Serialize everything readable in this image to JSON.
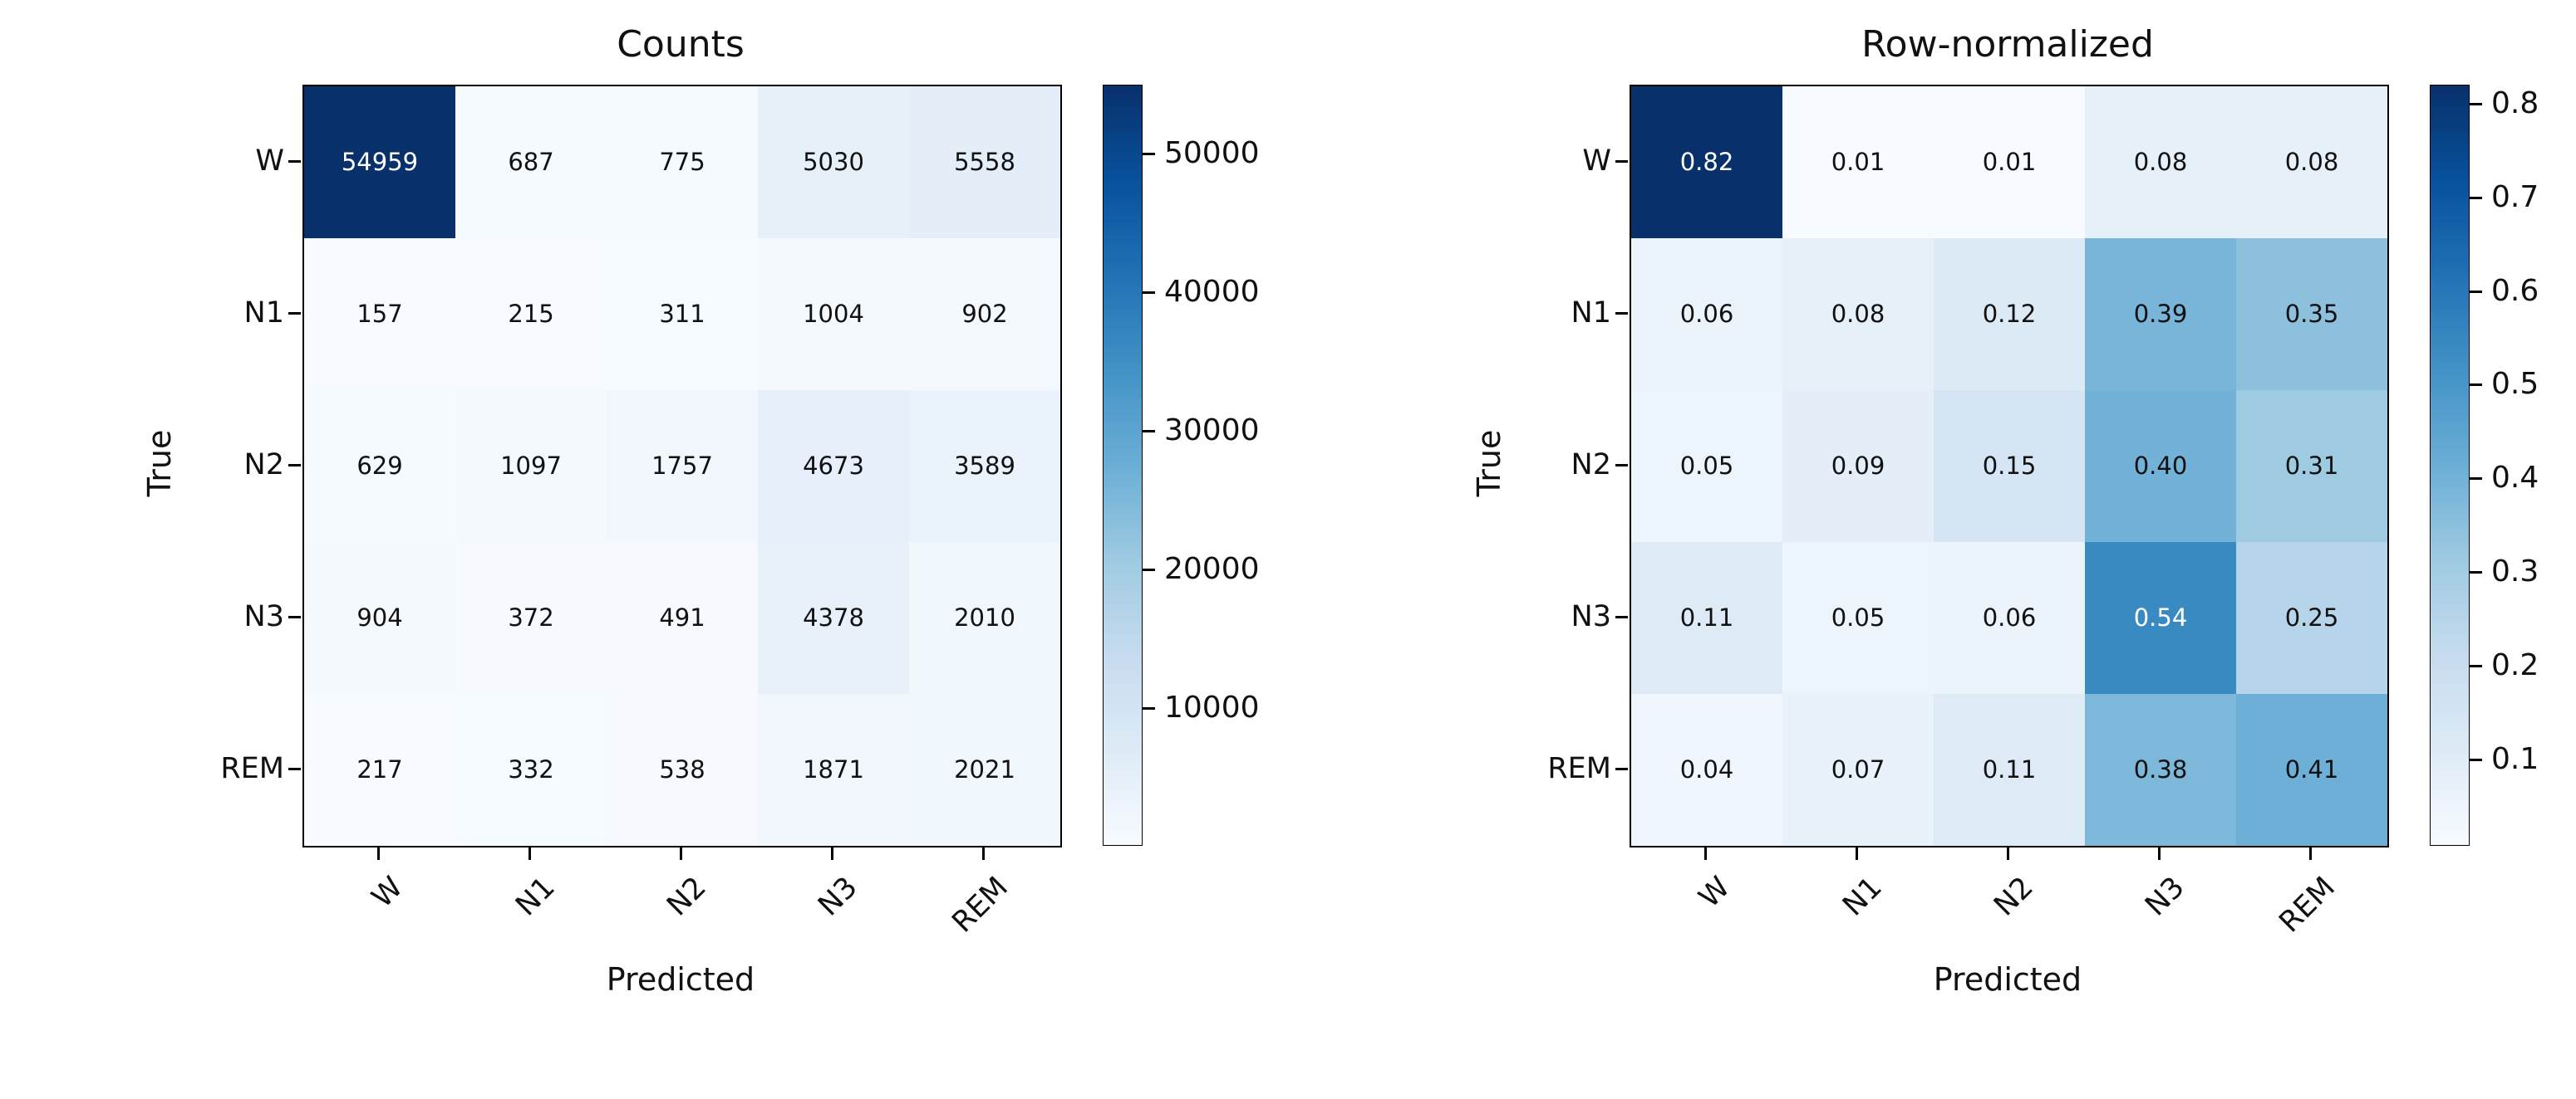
{
  "figure": {
    "background": "#ffffff"
  },
  "colors": {
    "colormap_name": "Blues",
    "colormap_stops": [
      "#f7fbff",
      "#deebf7",
      "#c6dbef",
      "#9ecae1",
      "#6baed6",
      "#4292c6",
      "#2171b5",
      "#08519c",
      "#08306b"
    ],
    "annotation_dark": "#111111",
    "annotation_light": "#ffffff",
    "axes_edge": "#000000"
  },
  "chart_data": [
    {
      "type": "heatmap",
      "title": "Counts",
      "xlabel": "Predicted",
      "ylabel": "True",
      "x_categories": [
        "W",
        "N1",
        "N2",
        "N3",
        "REM"
      ],
      "y_categories": [
        "W",
        "N1",
        "N2",
        "N3",
        "REM"
      ],
      "values": [
        [
          54959,
          687,
          775,
          5030,
          5558
        ],
        [
          157,
          215,
          311,
          1004,
          902
        ],
        [
          629,
          1097,
          1757,
          4673,
          3589
        ],
        [
          904,
          372,
          491,
          4378,
          2010
        ],
        [
          217,
          332,
          538,
          1871,
          2021
        ]
      ],
      "vmin": 157,
      "vmax": 54959,
      "colorbar_ticks": [
        10000,
        20000,
        30000,
        40000,
        50000
      ],
      "colorbar_tick_labels": [
        "10000",
        "20000",
        "30000",
        "40000",
        "50000"
      ],
      "value_format": "integer",
      "colormap": "Blues",
      "legend_position": "right-colorbar",
      "grid": false
    },
    {
      "type": "heatmap",
      "title": "Row-normalized",
      "xlabel": "Predicted",
      "ylabel": "True",
      "x_categories": [
        "W",
        "N1",
        "N2",
        "N3",
        "REM"
      ],
      "y_categories": [
        "W",
        "N1",
        "N2",
        "N3",
        "REM"
      ],
      "values": [
        [
          0.82,
          0.01,
          0.01,
          0.08,
          0.08
        ],
        [
          0.06,
          0.08,
          0.12,
          0.39,
          0.35
        ],
        [
          0.05,
          0.09,
          0.15,
          0.4,
          0.31
        ],
        [
          0.11,
          0.05,
          0.06,
          0.54,
          0.25
        ],
        [
          0.04,
          0.07,
          0.11,
          0.38,
          0.41
        ]
      ],
      "vmin": 0.01,
      "vmax": 0.82,
      "colorbar_ticks": [
        0.1,
        0.2,
        0.3,
        0.4,
        0.5,
        0.6,
        0.7,
        0.8
      ],
      "colorbar_tick_labels": [
        "0.1",
        "0.2",
        "0.3",
        "0.4",
        "0.5",
        "0.6",
        "0.7",
        "0.8"
      ],
      "value_format": "fixed2",
      "colormap": "Blues",
      "legend_position": "right-colorbar",
      "grid": false
    }
  ]
}
